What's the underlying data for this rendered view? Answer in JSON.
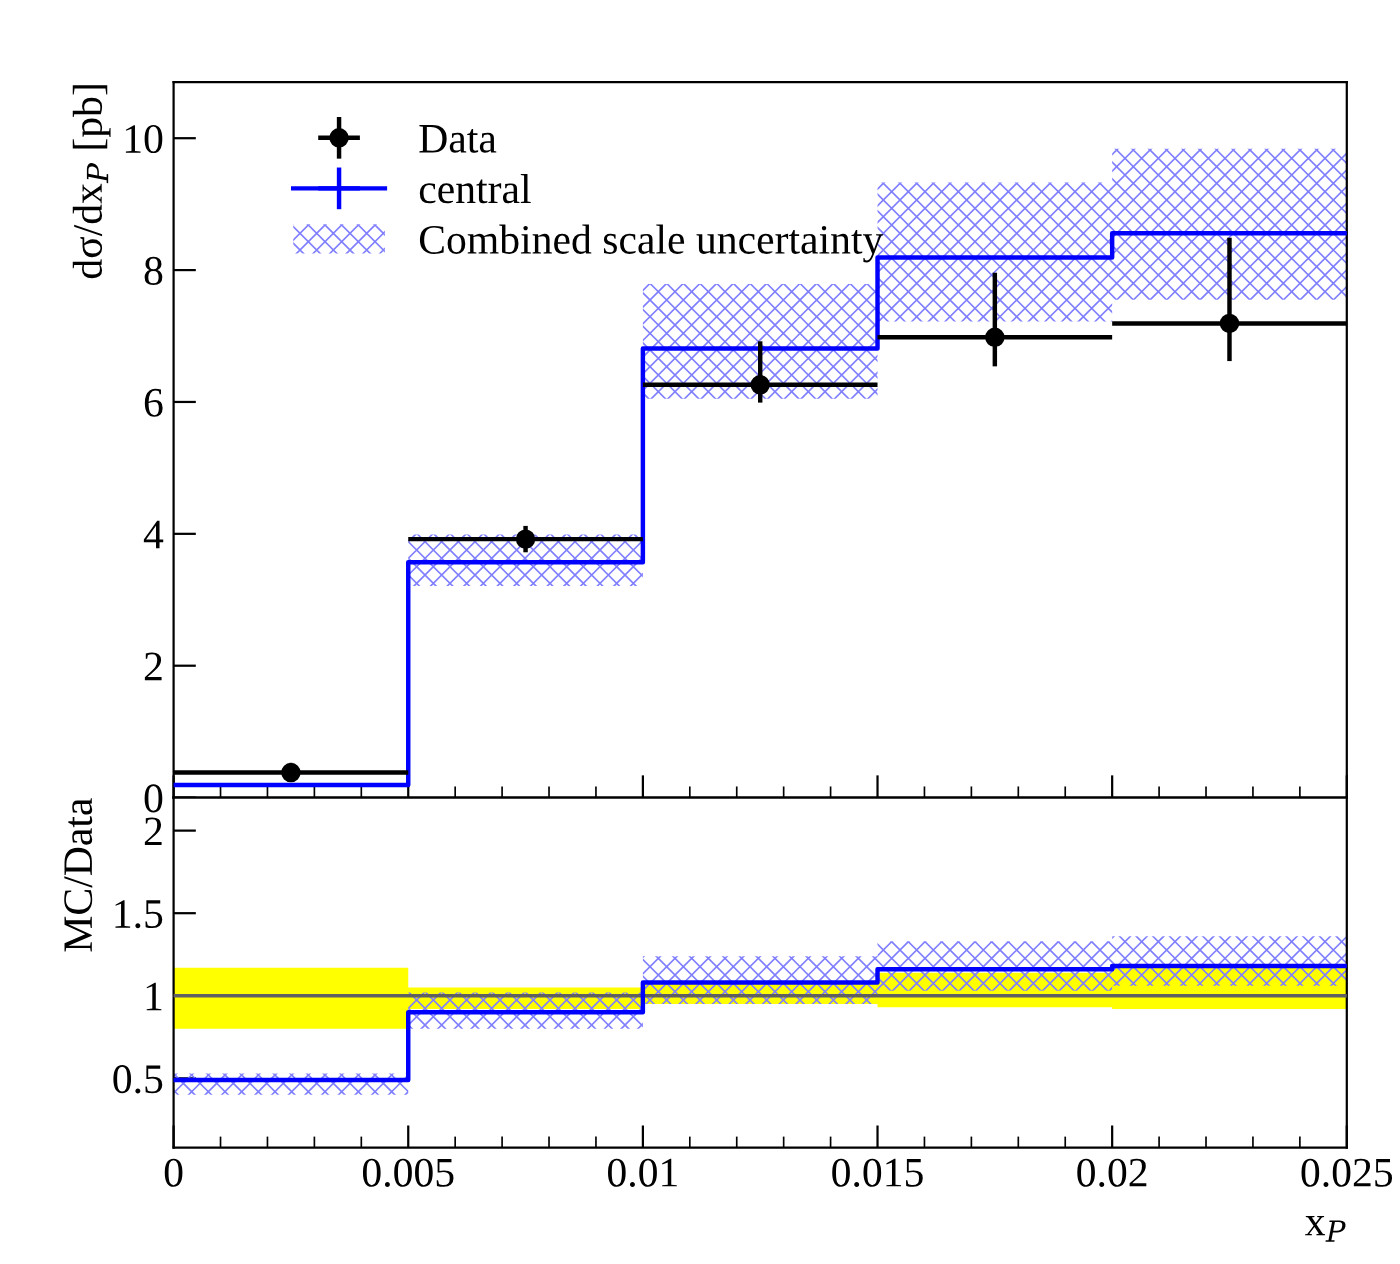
{
  "chart_data": [
    {
      "type": "step",
      "ylabel": "dσ/dx$_{P}$ [pb]",
      "xlim": [
        0,
        0.025
      ],
      "xticks": [
        0,
        0.005,
        0.01,
        0.015,
        0.02,
        0.025
      ],
      "ylim": [
        0,
        10.85
      ],
      "yticks": [
        0,
        2,
        4,
        6,
        8,
        10
      ],
      "tick_labels": "y",
      "legend": "top left",
      "grid": false,
      "x": [
        0,
        0.005,
        0.01,
        0.015,
        0.02,
        0.025
      ],
      "series": [
        {
          "name": "Combined scale uncertainty",
          "type": "area",
          "color": "#8080ff",
          "values": [
            null,
            null,
            null,
            null,
            null,
            null
          ],
          "lower": [
            0.19,
            3.21,
            6.05,
            7.22,
            7.55,
            7.55
          ],
          "upper": [
            0.19,
            3.99,
            7.79,
            9.33,
            9.84,
            9.84
          ]
        },
        {
          "name": "central",
          "color": "#0000ff",
          "values": [
            0.19,
            3.57,
            6.81,
            8.19,
            8.56,
            8.56
          ]
        },
        {
          "name": "Data",
          "type": "scatter",
          "color": "#000000",
          "x": [
            0.0025,
            0.0075,
            0.0125,
            0.0175,
            0.0225
          ],
          "marker": "circle",
          "values": [
            0.38,
            3.92,
            6.26,
            6.98,
            7.19
          ],
          "errors": [
            null,
            [
              3.72,
              4.12
            ],
            [
              5.99,
              6.92
            ],
            [
              6.54,
              7.96
            ],
            [
              6.62,
              8.49
            ]
          ],
          "xerrors": [
            0.0025,
            0.0025,
            0.0025,
            0.0025,
            0.0025
          ]
        }
      ]
    },
    {
      "type": "step",
      "xlabel": "x$_{P}$",
      "ylabel": "MC/Data",
      "xlim": [
        0,
        0.025
      ],
      "xticks": [
        0,
        0.005,
        0.01,
        0.015,
        0.02,
        0.025
      ],
      "ylim": [
        0.08,
        2.2
      ],
      "yticks": [
        0.5,
        1,
        1.5,
        2
      ],
      "grid": false,
      "x": [
        0,
        0.005,
        0.01,
        0.015,
        0.02,
        0.025
      ],
      "ref_lines": [
        {
          "axis": "y",
          "value": 1,
          "color": "#606060"
        }
      ],
      "series": [
        {
          "type": "area",
          "color": "#ffff00",
          "values": [
            null,
            null,
            null,
            null,
            null,
            null
          ],
          "lower": [
            0.8,
            0.92,
            0.95,
            0.93,
            0.92,
            0.92
          ],
          "upper": [
            1.17,
            1.05,
            1.08,
            1.14,
            1.18,
            1.18
          ]
        },
        {
          "type": "area",
          "color": "#8080ff",
          "values": [
            null,
            null,
            null,
            null,
            null,
            null
          ],
          "lower": [
            0.4,
            0.8,
            0.95,
            1.03,
            1.06,
            1.06
          ],
          "upper": [
            0.53,
            1.02,
            1.24,
            1.33,
            1.36,
            1.36
          ]
        },
        {
          "color": "#0000ff",
          "values": [
            0.49,
            0.9,
            1.08,
            1.16,
            1.18,
            1.18
          ]
        }
      ]
    }
  ]
}
